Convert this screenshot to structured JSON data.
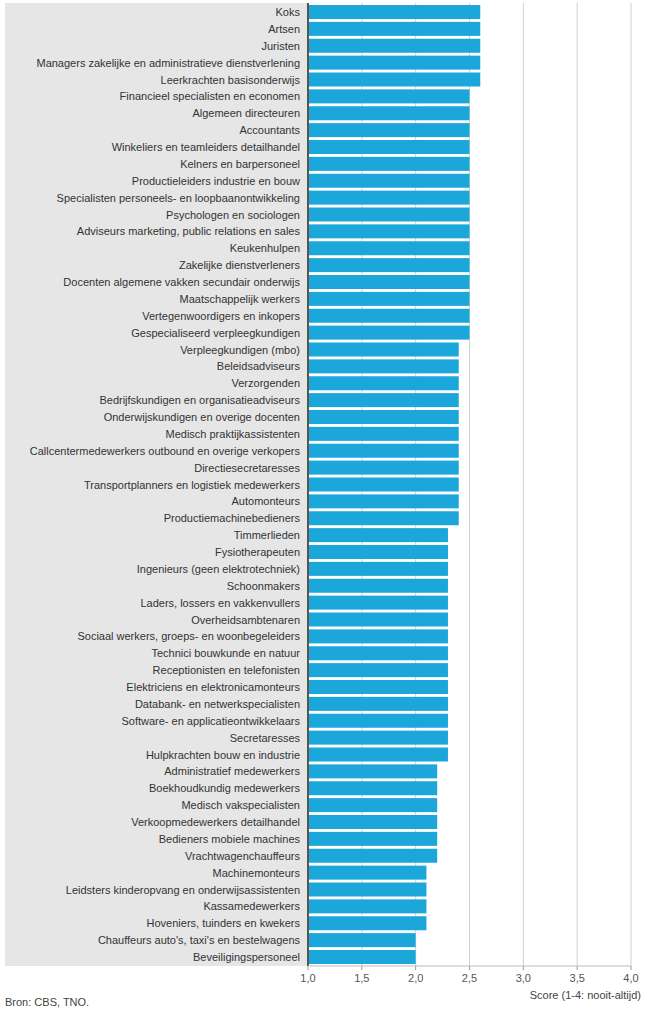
{
  "chart_data": {
    "type": "bar",
    "orientation": "horizontal",
    "x_label": "Score (1-4: nooit-altijd)",
    "source": "Bron: CBS, TNO.",
    "color": "#1ba7d9",
    "grid": true,
    "categories": [
      "Koks",
      "Artsen",
      "Juristen",
      "Managers zakelijke en administratieve dienstverlening",
      "Leerkrachten basisonderwijs",
      "Financieel specialisten en economen",
      "Algemeen directeuren",
      "Accountants",
      "Winkeliers en teamleiders detailhandel",
      "Kelners en barpersoneel",
      "Productieleiders industrie en bouw",
      "Specialisten personeels- en loopbaanontwikkeling",
      "Psychologen en sociologen",
      "Adviseurs marketing, public relations en sales",
      "Keukenhulpen",
      "Zakelijke dienstverleners",
      "Docenten algemene vakken secundair onderwijs",
      "Maatschappelijk werkers",
      "Vertegenwoordigers en inkopers",
      "Gespecialiseerd verpleegkundigen",
      "Verpleegkundigen (mbo)",
      "Beleidsadviseurs",
      "Verzorgenden",
      "Bedrijfskundigen en organisatieadviseurs",
      "Onderwijskundigen en overige docenten",
      "Medisch praktijkassistenten",
      "Callcentermedewerkers outbound en overige verkopers",
      "Directiesecretaresses",
      "Transportplanners en logistiek medewerkers",
      "Automonteurs",
      "Productiemachinebedieners",
      "Timmerlieden",
      "Fysiotherapeuten",
      "Ingenieurs (geen elektrotechniek)",
      "Schoonmakers",
      "Laders, lossers en vakkenvullers",
      "Overheidsambtenaren",
      "Sociaal werkers, groeps- en woonbegeleiders",
      "Technici bouwkunde en natuur",
      "Receptionisten en telefonisten",
      "Elektriciens en elektronicamonteurs",
      "Databank- en netwerkspecialisten",
      "Software- en applicatieontwikkelaars",
      "Secretaresses",
      "Hulpkrachten bouw en industrie",
      "Administratief medewerkers",
      "Boekhoudkundig medewerkers",
      "Medisch vakspecialisten",
      "Verkoopmedewerkers detailhandel",
      "Bedieners mobiele machines",
      "Vrachtwagenchauffeurs",
      "Machinemonteurs",
      "Leidsters kinderopvang en onderwijsassistenten",
      "Kassamedewerkers",
      "Hoveniers, tuinders en kwekers",
      "Chauffeurs auto's, taxi's en bestelwagens",
      "Beveiligingspersoneel"
    ],
    "values": [
      2.6,
      2.6,
      2.6,
      2.6,
      2.6,
      2.5,
      2.5,
      2.5,
      2.5,
      2.5,
      2.5,
      2.5,
      2.5,
      2.5,
      2.5,
      2.5,
      2.5,
      2.5,
      2.5,
      2.5,
      2.4,
      2.4,
      2.4,
      2.4,
      2.4,
      2.4,
      2.4,
      2.4,
      2.4,
      2.4,
      2.4,
      2.3,
      2.3,
      2.3,
      2.3,
      2.3,
      2.3,
      2.3,
      2.3,
      2.3,
      2.3,
      2.3,
      2.3,
      2.3,
      2.3,
      2.2,
      2.2,
      2.2,
      2.2,
      2.2,
      2.2,
      2.1,
      2.1,
      2.1,
      2.1,
      2.0,
      2.0
    ],
    "xlim": [
      1,
      4
    ],
    "xticks": [
      {
        "value": 1,
        "label": "1,0"
      },
      {
        "value": 1.5,
        "label": "1,5"
      },
      {
        "value": 2,
        "label": "2,0"
      },
      {
        "value": 2.5,
        "label": "2,5"
      },
      {
        "value": 3,
        "label": "3,0"
      },
      {
        "value": 3.5,
        "label": "3,5"
      },
      {
        "value": 4,
        "label": "4,0"
      }
    ]
  }
}
